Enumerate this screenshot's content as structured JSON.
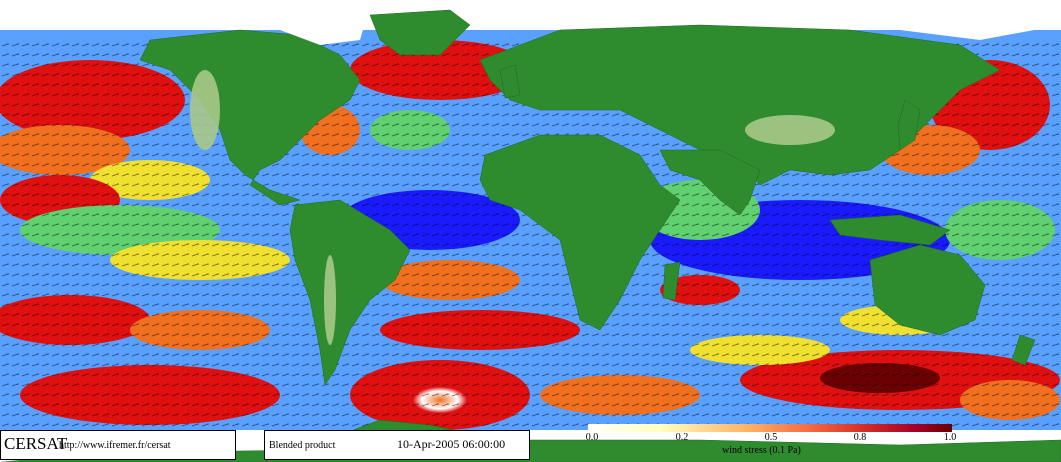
{
  "footer": {
    "brand": "CERSAT",
    "url": "http://www.ifremer.fr/cersat",
    "product": "Blended product",
    "datetime": "10-Apr-2005 06:00:00"
  },
  "legend": {
    "ticks": [
      "0.0",
      "0.2",
      "0.5",
      "0.8",
      "1.0"
    ],
    "label": "wind stress (0.1 Pa)",
    "colors": [
      "#ffffff",
      "#ffffbf",
      "#fdae61",
      "#f46d43",
      "#d73027",
      "#a50026",
      "#6a0000"
    ]
  },
  "map_colors": {
    "ocean_low": "#1a1aff",
    "ocean_mid": "#5aa0ff",
    "ocean_green": "#60d070",
    "ocean_yellow": "#f0e030",
    "ocean_orange": "#f07020",
    "ocean_high": "#e01010",
    "land": "#2e8b2e",
    "land_dark": "#1f6b1f",
    "land_light": "#a8c88a",
    "ice": "#ffffff"
  }
}
